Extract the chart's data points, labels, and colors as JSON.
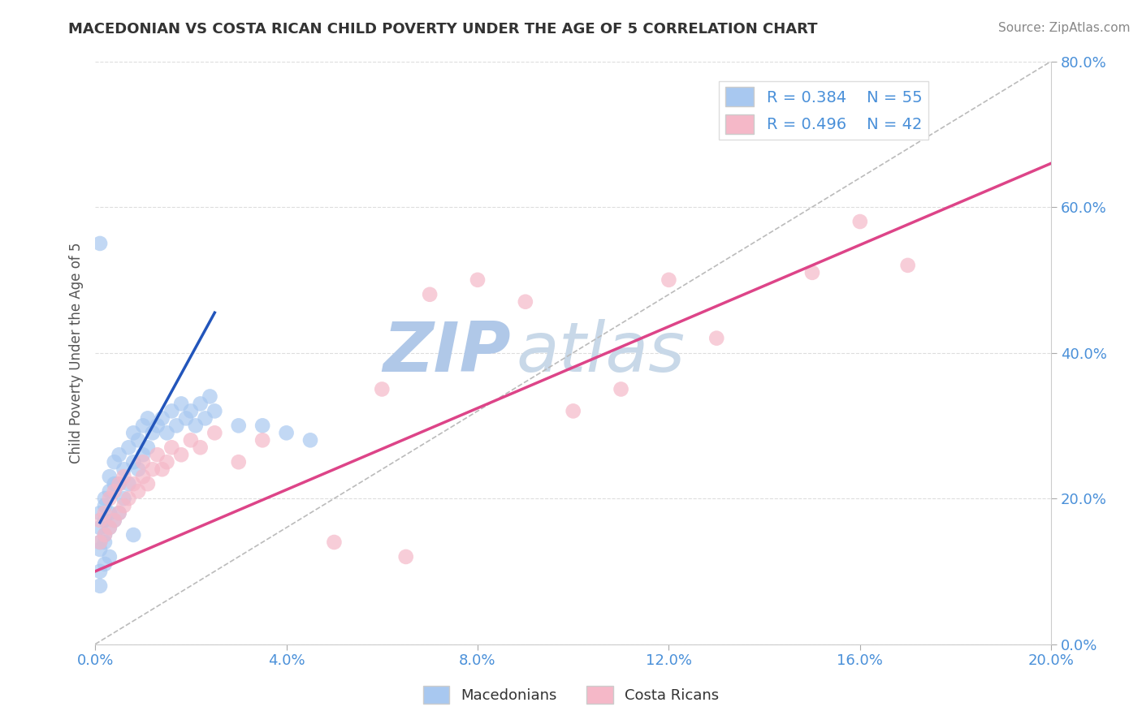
{
  "title": "MACEDONIAN VS COSTA RICAN CHILD POVERTY UNDER THE AGE OF 5 CORRELATION CHART",
  "source": "Source: ZipAtlas.com",
  "ylabel": "Child Poverty Under the Age of 5",
  "xlim": [
    0,
    0.2
  ],
  "ylim": [
    0,
    0.8
  ],
  "xticks": [
    0.0,
    0.04,
    0.08,
    0.12,
    0.16,
    0.2
  ],
  "yticks": [
    0.0,
    0.2,
    0.4,
    0.6,
    0.8
  ],
  "macedonian_R": 0.384,
  "macedonian_N": 55,
  "costa_rican_R": 0.496,
  "costa_rican_N": 42,
  "blue_color": "#a8c8f0",
  "pink_color": "#f5b8c8",
  "blue_line_color": "#2255bb",
  "pink_line_color": "#dd4488",
  "ref_line_color": "#bbbbbb",
  "watermark_zip_color": "#b0c8e8",
  "watermark_atlas_color": "#c8d8e8",
  "background_color": "#ffffff",
  "grid_color": "#dddddd",
  "tick_color": "#4a90d9",
  "title_color": "#333333",
  "ylabel_color": "#555555",
  "mac_x": [
    0.001,
    0.001,
    0.001,
    0.002,
    0.002,
    0.002,
    0.002,
    0.003,
    0.003,
    0.003,
    0.003,
    0.004,
    0.004,
    0.004,
    0.005,
    0.005,
    0.005,
    0.006,
    0.006,
    0.007,
    0.007,
    0.008,
    0.008,
    0.009,
    0.009,
    0.01,
    0.01,
    0.011,
    0.011,
    0.012,
    0.013,
    0.014,
    0.015,
    0.016,
    0.017,
    0.018,
    0.019,
    0.02,
    0.021,
    0.022,
    0.023,
    0.024,
    0.025,
    0.03,
    0.035,
    0.04,
    0.045,
    0.001,
    0.002,
    0.003,
    0.001,
    0.001,
    0.002,
    0.008,
    0.001
  ],
  "mac_y": [
    0.14,
    0.16,
    0.18,
    0.15,
    0.17,
    0.19,
    0.2,
    0.16,
    0.18,
    0.21,
    0.23,
    0.17,
    0.22,
    0.25,
    0.18,
    0.22,
    0.26,
    0.2,
    0.24,
    0.22,
    0.27,
    0.25,
    0.29,
    0.24,
    0.28,
    0.26,
    0.3,
    0.27,
    0.31,
    0.29,
    0.3,
    0.31,
    0.29,
    0.32,
    0.3,
    0.33,
    0.31,
    0.32,
    0.3,
    0.33,
    0.31,
    0.34,
    0.32,
    0.3,
    0.3,
    0.29,
    0.28,
    0.1,
    0.11,
    0.12,
    0.55,
    0.13,
    0.14,
    0.15,
    0.08
  ],
  "cr_x": [
    0.001,
    0.001,
    0.002,
    0.002,
    0.003,
    0.003,
    0.004,
    0.004,
    0.005,
    0.005,
    0.006,
    0.006,
    0.007,
    0.008,
    0.009,
    0.01,
    0.01,
    0.011,
    0.012,
    0.013,
    0.014,
    0.015,
    0.016,
    0.018,
    0.02,
    0.022,
    0.025,
    0.03,
    0.035,
    0.05,
    0.06,
    0.065,
    0.07,
    0.08,
    0.1,
    0.11,
    0.13,
    0.15,
    0.16,
    0.17,
    0.12,
    0.09
  ],
  "cr_y": [
    0.14,
    0.17,
    0.15,
    0.18,
    0.16,
    0.2,
    0.17,
    0.21,
    0.18,
    0.22,
    0.19,
    0.23,
    0.2,
    0.22,
    0.21,
    0.23,
    0.25,
    0.22,
    0.24,
    0.26,
    0.24,
    0.25,
    0.27,
    0.26,
    0.28,
    0.27,
    0.29,
    0.25,
    0.28,
    0.14,
    0.35,
    0.12,
    0.48,
    0.5,
    0.32,
    0.35,
    0.42,
    0.51,
    0.58,
    0.52,
    0.5,
    0.47
  ],
  "blue_trend_x": [
    0.001,
    0.025
  ],
  "blue_trend_slope": 12.0,
  "blue_trend_intercept": 0.155,
  "pink_trend_x": [
    0.0,
    0.2
  ],
  "pink_trend_slope": 2.8,
  "pink_trend_intercept": 0.1
}
